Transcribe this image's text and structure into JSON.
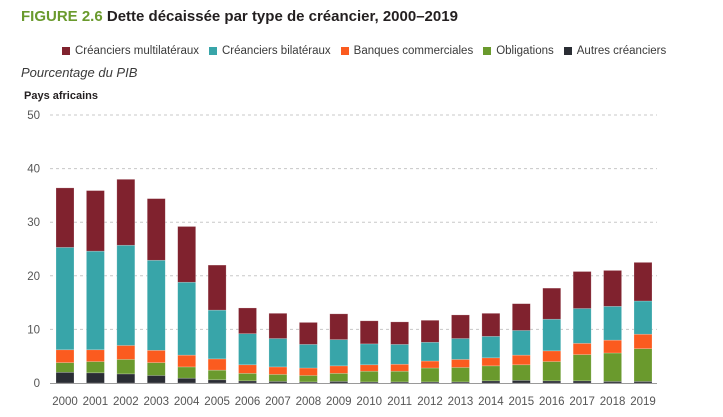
{
  "title": {
    "figure_label": "FIGURE 2.6",
    "text": "Dette décaissée par type de créancier, 2000–2019"
  },
  "unit_label": "Pourcentage du PIB",
  "panel_label": "Pays africains",
  "colors": {
    "multilateraux": "#80222e",
    "bilateraux": "#38a5a9",
    "banques": "#fb5b1f",
    "obligations": "#6a9a2d",
    "autres": "#2a2d34"
  },
  "chart_data": {
    "type": "bar",
    "stacked": true,
    "title": "Dette décaissée par type de créancier, 2000–2019",
    "subtitle": "Pays africains",
    "xlabel": "",
    "ylabel": "Pourcentage du PIB",
    "ylim": [
      0,
      50
    ],
    "yticks": [
      0,
      10,
      20,
      30,
      40,
      50
    ],
    "grid": true,
    "legend_position": "top",
    "categories": [
      "2000",
      "2001",
      "2002",
      "2003",
      "2004",
      "2005",
      "2006",
      "2007",
      "2008",
      "2009",
      "2010",
      "2011",
      "2012",
      "2013",
      "2014",
      "2015",
      "2016",
      "2017",
      "2018",
      "2019"
    ],
    "series": [
      {
        "key": "autres",
        "name": "Autres créanciers",
        "color": "#2a2d34",
        "values": [
          2.0,
          1.9,
          1.7,
          1.4,
          0.9,
          0.6,
          0.4,
          0.3,
          0.2,
          0.3,
          0.2,
          0.2,
          0.2,
          0.2,
          0.4,
          0.5,
          0.4,
          0.4,
          0.3,
          0.3
        ]
      },
      {
        "key": "obligations",
        "name": "Obligations",
        "color": "#6a9a2d",
        "values": [
          1.8,
          2.1,
          2.7,
          2.4,
          2.1,
          1.8,
          1.4,
          1.3,
          1.2,
          1.5,
          2.0,
          2.0,
          2.6,
          2.7,
          2.8,
          2.9,
          3.6,
          4.9,
          5.3,
          6.1
        ]
      },
      {
        "key": "banques",
        "name": "Banques commerciales",
        "color": "#fb5b1f",
        "values": [
          2.4,
          2.2,
          2.6,
          2.3,
          2.2,
          2.1,
          1.6,
          1.4,
          1.4,
          1.4,
          1.2,
          1.3,
          1.3,
          1.5,
          1.5,
          1.8,
          2.0,
          2.1,
          2.4,
          2.7
        ]
      },
      {
        "key": "bilateraux",
        "name": "Créanciers bilatéraux",
        "color": "#38a5a9",
        "values": [
          19.1,
          18.4,
          18.7,
          16.8,
          13.6,
          9.1,
          5.8,
          5.3,
          4.4,
          4.9,
          3.9,
          3.7,
          3.5,
          3.9,
          4.0,
          4.6,
          5.9,
          6.5,
          6.3,
          6.2
        ]
      },
      {
        "key": "multilateraux",
        "name": "Créanciers multilatéraux",
        "color": "#80222e",
        "values": [
          11.1,
          11.3,
          12.3,
          11.5,
          10.4,
          8.4,
          4.8,
          4.7,
          4.1,
          4.8,
          4.3,
          4.2,
          4.1,
          4.4,
          4.3,
          5.0,
          5.8,
          6.9,
          6.7,
          7.2
        ]
      }
    ]
  },
  "legend": [
    {
      "label": "Créanciers multilatéraux",
      "color": "#80222e"
    },
    {
      "label": "Créanciers bilatéraux",
      "color": "#38a5a9"
    },
    {
      "label": "Banques commerciales",
      "color": "#fb5b1f"
    },
    {
      "label": "Obligations",
      "color": "#6a9a2d"
    },
    {
      "label": "Autres créanciers",
      "color": "#2a2d34"
    }
  ]
}
